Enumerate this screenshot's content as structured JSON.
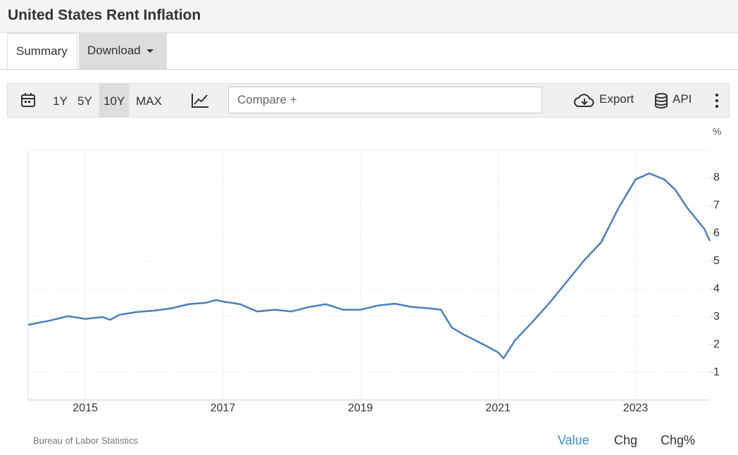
{
  "header": {
    "title": "United States Rent Inflation"
  },
  "tabs": [
    "Summary",
    "Download"
  ],
  "toolbar": {
    "ranges": [
      "1Y",
      "5Y",
      "10Y",
      "MAX"
    ],
    "compare": "Compare +",
    "export": "Export",
    "api": "API"
  },
  "chart_data": {
    "type": "line",
    "y_label": "%",
    "color": "#4a7fbb",
    "grid": true,
    "x": [
      2014.17,
      2014.5,
      2014.75,
      2015.0,
      2015.25,
      2015.36,
      2015.5,
      2015.75,
      2016.0,
      2016.25,
      2016.5,
      2016.75,
      2016.9,
      2017.0,
      2017.25,
      2017.5,
      2017.75,
      2018.0,
      2018.25,
      2018.5,
      2018.75,
      2019.0,
      2019.25,
      2019.5,
      2019.75,
      2020.0,
      2020.17,
      2020.33,
      2020.5,
      2020.75,
      2021.0,
      2021.08,
      2021.25,
      2021.5,
      2021.75,
      2022.0,
      2022.25,
      2022.5,
      2022.75,
      2023.0,
      2023.2,
      2023.42,
      2023.58,
      2023.75,
      2024.0,
      2024.08
    ],
    "values": [
      2.71,
      2.87,
      3.02,
      2.92,
      2.99,
      2.89,
      3.07,
      3.17,
      3.22,
      3.3,
      3.45,
      3.5,
      3.6,
      3.55,
      3.45,
      3.19,
      3.25,
      3.19,
      3.35,
      3.45,
      3.25,
      3.25,
      3.4,
      3.47,
      3.35,
      3.3,
      3.25,
      2.61,
      2.36,
      2.05,
      1.72,
      1.5,
      2.16,
      2.81,
      3.5,
      4.26,
      5.02,
      5.68,
      6.9,
      7.94,
      8.16,
      7.94,
      7.56,
      6.92,
      6.16,
      5.73
    ],
    "xlim": [
      2014.17,
      2024.08
    ],
    "xticks": [
      2015,
      2017,
      2019,
      2021,
      2023
    ],
    "ylim": [
      0,
      9
    ],
    "yticks": [
      1,
      2,
      3,
      4,
      5,
      6,
      7,
      8
    ]
  },
  "footer": {
    "source": "Bureau of Labor Statistics",
    "views": [
      "Value",
      "Chg",
      "Chg%"
    ]
  }
}
